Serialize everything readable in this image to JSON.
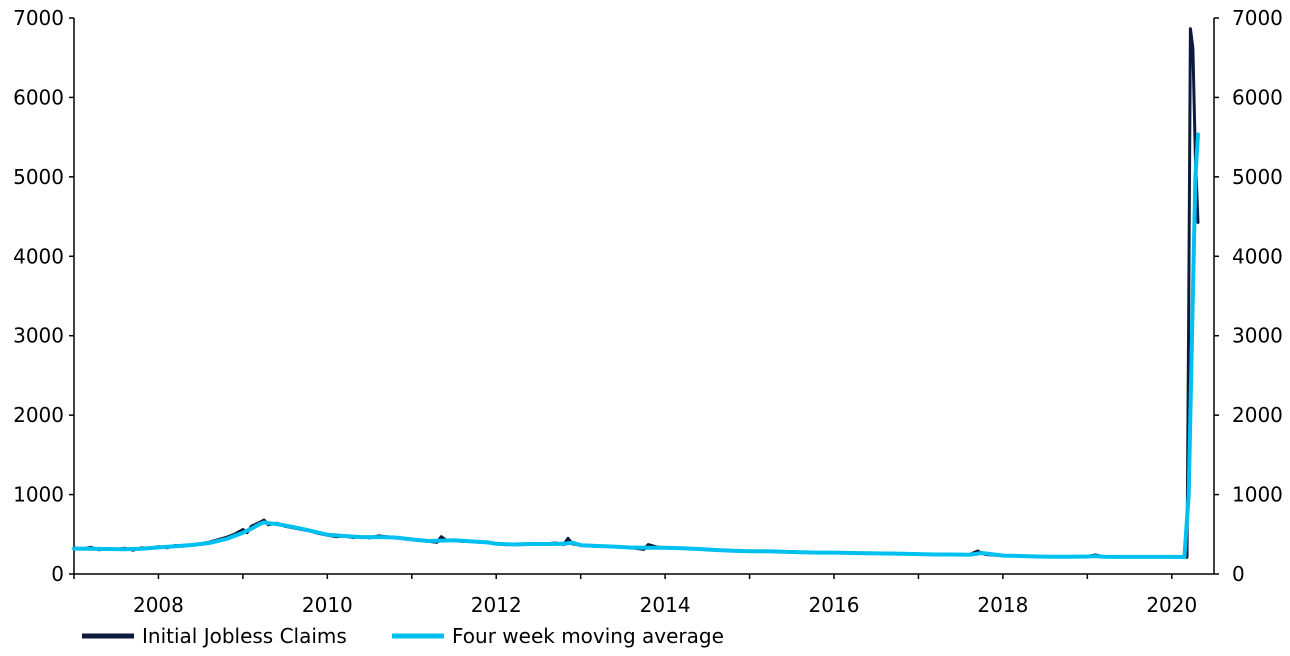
{
  "chart_data": {
    "type": "line",
    "title": "",
    "xlabel": "",
    "ylabel": "",
    "x_ticks": [
      "2008",
      "2010",
      "2012",
      "2014",
      "2016",
      "2018",
      "2020"
    ],
    "x_tick_values": [
      2008,
      2010,
      2012,
      2014,
      2016,
      2018,
      2020
    ],
    "xlim": [
      2007.0,
      2020.5
    ],
    "ylim": [
      0,
      7000
    ],
    "y_ticks_left": [
      "0",
      "1000",
      "2000",
      "3000",
      "4000",
      "5000",
      "6000",
      "7000"
    ],
    "y_ticks_right": [
      "0",
      "1000",
      "2000",
      "3000",
      "4000",
      "5000",
      "6000",
      "7000"
    ],
    "grid": false,
    "legend_position": "bottom-left",
    "series": [
      {
        "name": "Initial Jobless Claims",
        "color": "#0b1a3d",
        "points": [
          [
            2007.0,
            330
          ],
          [
            2007.1,
            315
          ],
          [
            2007.2,
            335
          ],
          [
            2007.3,
            305
          ],
          [
            2007.4,
            320
          ],
          [
            2007.5,
            310
          ],
          [
            2007.6,
            325
          ],
          [
            2007.7,
            300
          ],
          [
            2007.8,
            330
          ],
          [
            2007.9,
            320
          ],
          [
            2008.0,
            345
          ],
          [
            2008.1,
            330
          ],
          [
            2008.2,
            360
          ],
          [
            2008.3,
            350
          ],
          [
            2008.4,
            370
          ],
          [
            2008.5,
            380
          ],
          [
            2008.6,
            400
          ],
          [
            2008.7,
            430
          ],
          [
            2008.8,
            460
          ],
          [
            2008.9,
            500
          ],
          [
            2009.0,
            560
          ],
          [
            2009.05,
            520
          ],
          [
            2009.1,
            600
          ],
          [
            2009.2,
            650
          ],
          [
            2009.25,
            680
          ],
          [
            2009.3,
            620
          ],
          [
            2009.4,
            640
          ],
          [
            2009.5,
            600
          ],
          [
            2009.6,
            580
          ],
          [
            2009.7,
            560
          ],
          [
            2009.8,
            540
          ],
          [
            2009.9,
            510
          ],
          [
            2010.0,
            490
          ],
          [
            2010.1,
            470
          ],
          [
            2010.2,
            480
          ],
          [
            2010.3,
            460
          ],
          [
            2010.4,
            470
          ],
          [
            2010.5,
            455
          ],
          [
            2010.6,
            480
          ],
          [
            2010.7,
            470
          ],
          [
            2010.8,
            460
          ],
          [
            2010.9,
            445
          ],
          [
            2011.0,
            430
          ],
          [
            2011.1,
            420
          ],
          [
            2011.2,
            410
          ],
          [
            2011.3,
            400
          ],
          [
            2011.35,
            470
          ],
          [
            2011.4,
            430
          ],
          [
            2011.5,
            420
          ],
          [
            2011.6,
            410
          ],
          [
            2011.7,
            410
          ],
          [
            2011.8,
            400
          ],
          [
            2011.9,
            395
          ],
          [
            2012.0,
            380
          ],
          [
            2012.1,
            370
          ],
          [
            2012.2,
            375
          ],
          [
            2012.3,
            370
          ],
          [
            2012.4,
            385
          ],
          [
            2012.5,
            375
          ],
          [
            2012.6,
            380
          ],
          [
            2012.7,
            390
          ],
          [
            2012.8,
            370
          ],
          [
            2012.85,
            450
          ],
          [
            2012.9,
            380
          ],
          [
            2013.0,
            360
          ],
          [
            2013.2,
            350
          ],
          [
            2013.4,
            345
          ],
          [
            2013.6,
            330
          ],
          [
            2013.75,
            310
          ],
          [
            2013.8,
            370
          ],
          [
            2013.9,
            340
          ],
          [
            2014.0,
            330
          ],
          [
            2014.2,
            325
          ],
          [
            2014.4,
            315
          ],
          [
            2014.6,
            300
          ],
          [
            2014.8,
            290
          ],
          [
            2015.0,
            285
          ],
          [
            2015.2,
            290
          ],
          [
            2015.4,
            280
          ],
          [
            2015.6,
            275
          ],
          [
            2015.8,
            270
          ],
          [
            2016.0,
            270
          ],
          [
            2016.2,
            265
          ],
          [
            2016.4,
            262
          ],
          [
            2016.6,
            258
          ],
          [
            2016.8,
            255
          ],
          [
            2017.0,
            250
          ],
          [
            2017.2,
            245
          ],
          [
            2017.4,
            248
          ],
          [
            2017.6,
            240
          ],
          [
            2017.7,
            290
          ],
          [
            2017.75,
            260
          ],
          [
            2017.8,
            245
          ],
          [
            2018.0,
            230
          ],
          [
            2018.2,
            225
          ],
          [
            2018.4,
            220
          ],
          [
            2018.6,
            215
          ],
          [
            2018.8,
            215
          ],
          [
            2019.0,
            220
          ],
          [
            2019.1,
            240
          ],
          [
            2019.2,
            215
          ],
          [
            2019.4,
            215
          ],
          [
            2019.6,
            215
          ],
          [
            2019.8,
            215
          ],
          [
            2020.0,
            215
          ],
          [
            2020.1,
            220
          ],
          [
            2020.18,
            210
          ],
          [
            2020.2,
            3300
          ],
          [
            2020.22,
            6867
          ],
          [
            2020.25,
            6615
          ],
          [
            2020.28,
            5245
          ],
          [
            2020.31,
            4427
          ]
        ]
      },
      {
        "name": "Four week moving average",
        "color": "#00c0f0",
        "points": [
          [
            2007.0,
            320
          ],
          [
            2007.2,
            318
          ],
          [
            2007.4,
            315
          ],
          [
            2007.6,
            312
          ],
          [
            2007.8,
            318
          ],
          [
            2008.0,
            335
          ],
          [
            2008.2,
            350
          ],
          [
            2008.4,
            365
          ],
          [
            2008.6,
            390
          ],
          [
            2008.8,
            440
          ],
          [
            2009.0,
            520
          ],
          [
            2009.1,
            570
          ],
          [
            2009.2,
            630
          ],
          [
            2009.25,
            650
          ],
          [
            2009.3,
            640
          ],
          [
            2009.4,
            630
          ],
          [
            2009.6,
            590
          ],
          [
            2009.8,
            545
          ],
          [
            2010.0,
            495
          ],
          [
            2010.2,
            478
          ],
          [
            2010.4,
            465
          ],
          [
            2010.6,
            465
          ],
          [
            2010.8,
            460
          ],
          [
            2011.0,
            435
          ],
          [
            2011.2,
            415
          ],
          [
            2011.35,
            420
          ],
          [
            2011.5,
            425
          ],
          [
            2011.7,
            410
          ],
          [
            2011.9,
            398
          ],
          [
            2012.0,
            380
          ],
          [
            2012.2,
            372
          ],
          [
            2012.4,
            378
          ],
          [
            2012.6,
            378
          ],
          [
            2012.8,
            380
          ],
          [
            2012.9,
            395
          ],
          [
            2013.0,
            362
          ],
          [
            2013.2,
            352
          ],
          [
            2013.4,
            345
          ],
          [
            2013.6,
            332
          ],
          [
            2013.8,
            330
          ],
          [
            2014.0,
            330
          ],
          [
            2014.2,
            324
          ],
          [
            2014.4,
            315
          ],
          [
            2014.6,
            302
          ],
          [
            2014.8,
            292
          ],
          [
            2015.0,
            287
          ],
          [
            2015.2,
            287
          ],
          [
            2015.4,
            280
          ],
          [
            2015.6,
            275
          ],
          [
            2015.8,
            270
          ],
          [
            2016.0,
            270
          ],
          [
            2016.2,
            265
          ],
          [
            2016.4,
            262
          ],
          [
            2016.6,
            258
          ],
          [
            2016.8,
            255
          ],
          [
            2017.0,
            250
          ],
          [
            2017.2,
            246
          ],
          [
            2017.4,
            246
          ],
          [
            2017.6,
            242
          ],
          [
            2017.75,
            265
          ],
          [
            2017.9,
            245
          ],
          [
            2018.0,
            232
          ],
          [
            2018.2,
            226
          ],
          [
            2018.4,
            220
          ],
          [
            2018.6,
            216
          ],
          [
            2018.8,
            216
          ],
          [
            2019.0,
            220
          ],
          [
            2019.1,
            225
          ],
          [
            2019.2,
            218
          ],
          [
            2019.4,
            215
          ],
          [
            2019.6,
            215
          ],
          [
            2019.8,
            215
          ],
          [
            2020.0,
            215
          ],
          [
            2020.15,
            214
          ],
          [
            2020.2,
            1000
          ],
          [
            2020.24,
            3000
          ],
          [
            2020.28,
            5000
          ],
          [
            2020.31,
            5533
          ]
        ]
      }
    ]
  }
}
